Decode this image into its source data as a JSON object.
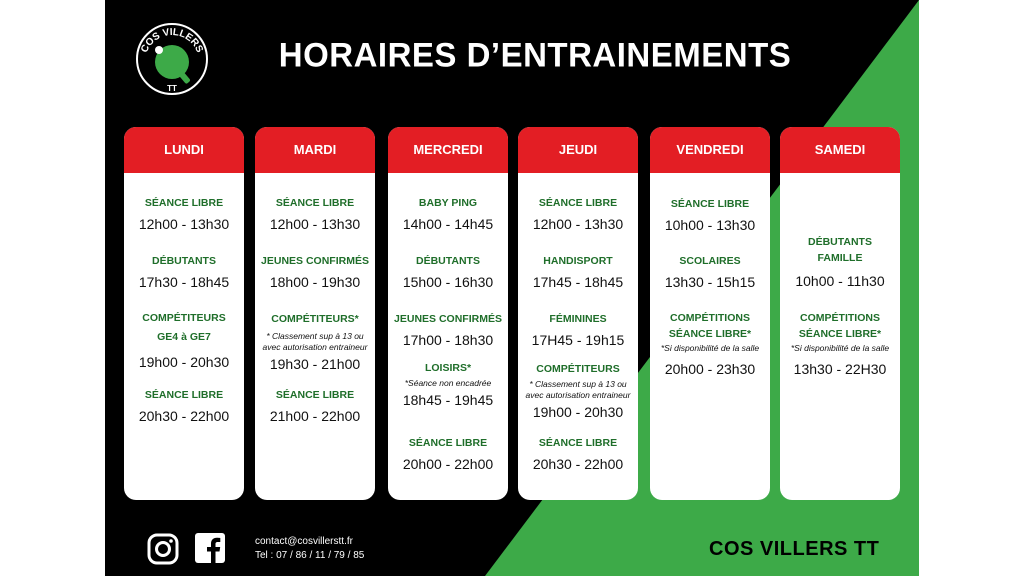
{
  "title": "HORAIRES D’ENTRAINEMENTS",
  "logo": {
    "text_top": "COS VILLERS",
    "text_bottom": "TT",
    "icon": "ping-pong-paddle-icon"
  },
  "colors": {
    "background": "#000000",
    "green": "#3daa48",
    "header_red": "#e31e24",
    "activity_green": "#1f6e2a"
  },
  "days": [
    {
      "name": "LUNDI",
      "sessions": [
        {
          "activity": "SÉANCE LIBRE",
          "time": "12h00 - 13h30"
        },
        {
          "activity": "DÉBUTANTS",
          "time": "17h30 - 18h45"
        },
        {
          "activity": "COMPÉTITEURS",
          "activity2": "GE4 à GE7",
          "time": "19h00 - 20h30"
        },
        {
          "activity": "SÉANCE LIBRE",
          "time": "20h30 - 22h00"
        }
      ]
    },
    {
      "name": "MARDI",
      "sessions": [
        {
          "activity": "SÉANCE LIBRE",
          "time": "12h00 - 13h30"
        },
        {
          "activity": "JEUNES CONFIRMÉS",
          "time": "18h00 - 19h30"
        },
        {
          "activity": "COMPÉTITEURS*",
          "note1": "* Classement sup à 13 ou",
          "note2": "avec autorisation entraineur",
          "time": "19h30 - 21h00"
        },
        {
          "activity": "SÉANCE LIBRE",
          "time": "21h00 - 22h00"
        }
      ]
    },
    {
      "name": "MERCREDI",
      "sessions": [
        {
          "activity": "BABY PING",
          "time": "14h00 - 14h45"
        },
        {
          "activity": "DÉBUTANTS",
          "time": "15h00 - 16h30"
        },
        {
          "activity": "JEUNES CONFIRMÉS",
          "time": "17h00 - 18h30"
        },
        {
          "activity": "LOISIRS*",
          "note1": "*Séance non encadrée",
          "time": "18h45 - 19h45"
        },
        {
          "activity": "SÉANCE LIBRE",
          "time": "20h00 - 22h00"
        }
      ]
    },
    {
      "name": "JEUDI",
      "sessions": [
        {
          "activity": "SÉANCE LIBRE",
          "time": "12h00 - 13h30"
        },
        {
          "activity": "HANDISPORT",
          "time": "17h45 - 18h45"
        },
        {
          "activity": "FÉMININES",
          "time": "17H45 - 19h15"
        },
        {
          "activity": "COMPÉTITEURS",
          "note1": "* Classement sup à 13 ou",
          "note2": "avec autorisation entraineur",
          "time": "19h00 - 20h30"
        },
        {
          "activity": "SÉANCE LIBRE",
          "time": "20h30 - 22h00"
        }
      ]
    },
    {
      "name": "VENDREDI",
      "sessions": [
        {
          "activity": "SÉANCE LIBRE",
          "time": "10h00 - 13h30"
        },
        {
          "activity": "SCOLAIRES",
          "time": "13h30 - 15h15"
        },
        {
          "activity": "COMPÉTITIONS",
          "activity2": "SÉANCE LIBRE*",
          "note1": "*Si disponibilité de la salle",
          "time": "20h00 - 23h30"
        }
      ]
    },
    {
      "name": "SAMEDI",
      "sessions": [
        {
          "activity": "DÉBUTANTS",
          "activity2": "FAMILLE",
          "time": "10h00 - 11h30"
        },
        {
          "activity": "COMPÉTITIONS",
          "activity2": "SÉANCE LIBRE*",
          "note1": "*Si disponibilité de la salle",
          "time": "13h30 - 22H30"
        }
      ]
    }
  ],
  "footer": {
    "instagram_icon": "instagram-icon",
    "facebook_icon": "facebook-icon",
    "email": "contact@cosvillerstt.fr",
    "phone": "Tel : 07 / 86 / 11 / 79 / 85",
    "brand": "COS VILLERS TT"
  }
}
